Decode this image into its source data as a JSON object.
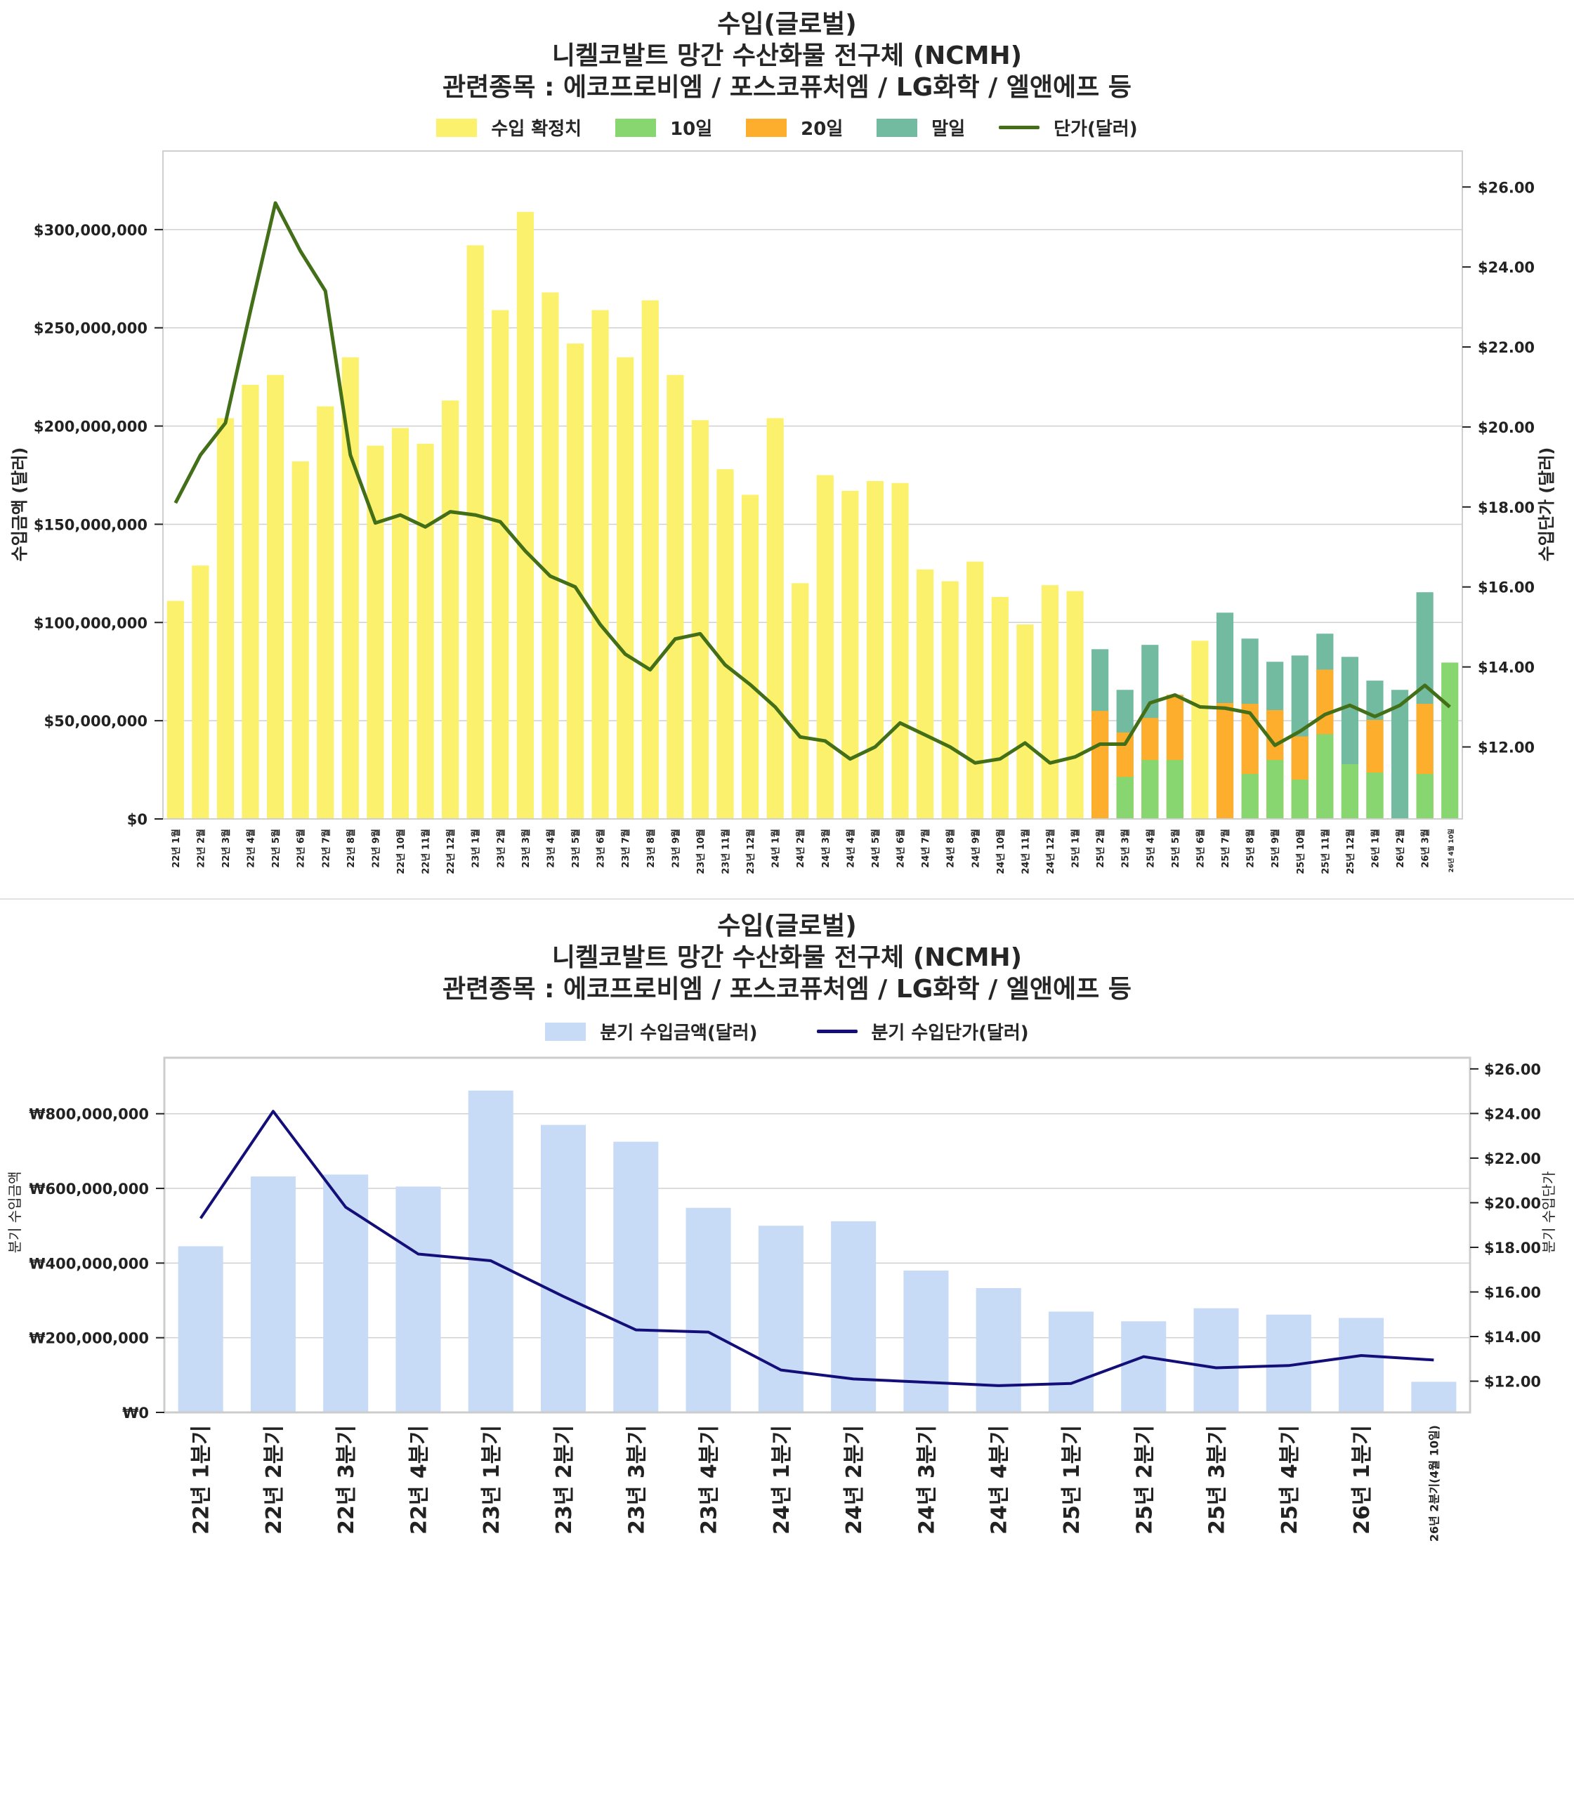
{
  "chart_data": [
    {
      "type": "bar",
      "title": [
        "수입(글로벌)",
        "니켈코발트 망간 수산화물 전구체 (NCMH)",
        "관련종목 : 에코프로비엠 / 포스코퓨처엠 / LG화학 / 엘앤에프 등"
      ],
      "legend": [
        {
          "label": "수입 확정치",
          "color": "#fcf16c",
          "kind": "bar"
        },
        {
          "label": "10일",
          "color": "#88d66f",
          "kind": "bar"
        },
        {
          "label": "20일",
          "color": "#fdae2c",
          "kind": "bar"
        },
        {
          "label": "말일",
          "color": "#72bba0",
          "kind": "bar"
        },
        {
          "label": "단가(달러)",
          "color": "#426f18",
          "kind": "line"
        }
      ],
      "legend_position": "top-center",
      "ylabel": "수입금액 (달러)",
      "y2label": "수입단가 (달러)",
      "ylim": [
        0,
        340000000
      ],
      "y2lim": [
        10.2,
        26.9
      ],
      "yticks": [
        0,
        50000000,
        100000000,
        150000000,
        200000000,
        250000000,
        300000000
      ],
      "ytick_labels": [
        "$0",
        "$50,000,000",
        "$100,000,000",
        "$150,000,000",
        "$200,000,000",
        "$250,000,000",
        "$300,000,000"
      ],
      "y2ticks": [
        12,
        14,
        16,
        18,
        20,
        22,
        24,
        26
      ],
      "y2tick_labels": [
        "$12.00",
        "$14.00",
        "$16.00",
        "$18.00",
        "$20.00",
        "$22.00",
        "$24.00",
        "$26.00"
      ],
      "grid": true,
      "categories": [
        "22년 1월",
        "22년 2월",
        "22년 3월",
        "22년 4월",
        "22년 5월",
        "22년 6월",
        "22년 7월",
        "22년 8월",
        "22년 9월",
        "22년 10월",
        "22년 11월",
        "22년 12월",
        "23년 1월",
        "23년 2월",
        "23년 3월",
        "23년 4월",
        "23년 5월",
        "23년 6월",
        "23년 7월",
        "23년 8월",
        "23년 9월",
        "23년 10월",
        "23년 11월",
        "23년 12월",
        "24년 1월",
        "24년 2월",
        "24년 3월",
        "24년 4월",
        "24년 5월",
        "24년 6월",
        "24년 7월",
        "24년 8월",
        "24년 9월",
        "24년 10월",
        "24년 11월",
        "24년 12월",
        "25년 1월",
        "25년 2월",
        "25년 3월",
        "25년 4월",
        "25년 5월",
        "25년 6월",
        "25년 7월",
        "25년 8월",
        "25년 9월",
        "25년 10월",
        "25년 11월",
        "25년 12월",
        "26년 1월",
        "26년 2월",
        "26년 3월",
        "26년 4월 10일"
      ],
      "series": [
        {
          "name": "수입 확정치",
          "values": [
            111000000,
            129000000,
            204000000,
            221000000,
            226000000,
            182000000,
            210000000,
            235000000,
            190000000,
            199000000,
            191000000,
            213000000,
            292000000,
            259000000,
            309000000,
            268000000,
            242000000,
            259000000,
            235000000,
            264000000,
            226000000,
            203000000,
            178000000,
            165000000,
            204000000,
            120000000,
            175000000,
            167000000,
            172000000,
            171000000,
            127000000,
            121000000,
            131000000,
            113000000,
            99000000,
            119000000,
            116000000,
            null,
            null,
            null,
            null,
            90700000,
            null,
            null,
            null,
            null,
            null,
            null,
            null,
            null,
            null,
            null
          ]
        },
        {
          "name": "말일",
          "values": [
            null,
            null,
            null,
            null,
            null,
            null,
            null,
            null,
            null,
            null,
            null,
            null,
            null,
            null,
            null,
            null,
            null,
            null,
            null,
            null,
            null,
            null,
            null,
            null,
            null,
            null,
            null,
            null,
            null,
            null,
            null,
            null,
            null,
            null,
            null,
            null,
            null,
            86400000,
            65700000,
            88600000,
            null,
            null,
            105000000,
            91800000,
            80000000,
            83200000,
            94300000,
            82500000,
            70400000,
            65700000,
            115400000,
            null
          ]
        },
        {
          "name": "20일",
          "values": [
            null,
            null,
            null,
            null,
            null,
            null,
            null,
            null,
            null,
            null,
            null,
            null,
            null,
            null,
            null,
            null,
            null,
            null,
            null,
            null,
            null,
            null,
            null,
            null,
            null,
            null,
            null,
            null,
            null,
            null,
            null,
            null,
            null,
            null,
            null,
            null,
            null,
            55000000,
            44000000,
            51400000,
            63200000,
            null,
            59000000,
            58600000,
            55400000,
            42000000,
            76000000,
            null,
            50400000,
            null,
            58600000,
            null
          ]
        },
        {
          "name": "10일",
          "values": [
            null,
            null,
            null,
            null,
            null,
            null,
            null,
            null,
            null,
            null,
            null,
            null,
            null,
            null,
            null,
            null,
            null,
            null,
            null,
            null,
            null,
            null,
            null,
            null,
            null,
            null,
            null,
            null,
            null,
            null,
            null,
            null,
            null,
            null,
            null,
            null,
            null,
            null,
            21400000,
            30000000,
            30000000,
            null,
            null,
            22900000,
            30000000,
            20000000,
            43200000,
            27900000,
            23600000,
            null,
            22900000,
            79600000
          ]
        },
        {
          "name": "단가(달러)",
          "axis": "y2",
          "values": [
            18.1,
            19.3,
            20.1,
            22.9,
            25.6,
            24.4,
            23.4,
            19.3,
            17.6,
            17.8,
            17.5,
            17.88,
            17.8,
            17.63,
            16.9,
            16.27,
            16.0,
            15.06,
            14.32,
            13.93,
            14.7,
            14.83,
            14.05,
            13.56,
            13.0,
            12.25,
            12.15,
            11.7,
            12.0,
            12.6,
            12.3,
            12.0,
            11.6,
            11.7,
            12.1,
            11.6,
            11.75,
            12.07,
            12.07,
            13.1,
            13.3,
            13.0,
            12.97,
            12.85,
            12.04,
            12.39,
            12.81,
            13.04,
            12.76,
            13.04,
            13.54,
            13.0
          ]
        }
      ]
    },
    {
      "type": "bar",
      "title": [
        "수입(글로벌)",
        "니켈코발트 망간 수산화물 전구체 (NCMH)",
        "관련종목 : 에코프로비엠 / 포스코퓨처엠 / LG화학 / 엘앤에프 등"
      ],
      "legend": [
        {
          "label": "분기 수입금액(달러)",
          "color": "#c7daf6",
          "kind": "bar"
        },
        {
          "label": "분기 수입단가(달러)",
          "color": "#140e78",
          "kind": "line"
        }
      ],
      "legend_position": "top-center",
      "ylabel": "분기 수입금액",
      "y2label": "분기 수입단가",
      "ylim": [
        0,
        950000000
      ],
      "y2lim": [
        10.6,
        26.5
      ],
      "yticks": [
        0,
        200000000,
        400000000,
        600000000,
        800000000
      ],
      "ytick_labels": [
        "₩0",
        "₩200,000,000",
        "₩400,000,000",
        "₩600,000,000",
        "₩800,000,000"
      ],
      "y2ticks": [
        12,
        14,
        16,
        18,
        20,
        22,
        24,
        26
      ],
      "y2tick_labels": [
        "$12.00",
        "$14.00",
        "$16.00",
        "$18.00",
        "$20.00",
        "$22.00",
        "$24.00",
        "$26.00"
      ],
      "grid": true,
      "categories": [
        "22년 1분기",
        "22년 2분기",
        "22년 3분기",
        "22년 4분기",
        "23년 1분기",
        "23년 2분기",
        "23년 3분기",
        "23년 4분기",
        "24년 1분기",
        "24년 2분기",
        "24년 3분기",
        "24년 4분기",
        "25년 1분기",
        "25년 2분기",
        "25년 3분기",
        "25년 4분기",
        "26년 1분기",
        "26년 2분기(4월 10일)"
      ],
      "series": [
        {
          "name": "분기 수입금액(달러)",
          "values": [
            445000000,
            632000000,
            637000000,
            605000000,
            862000000,
            770000000,
            725000000,
            548000000,
            500000000,
            512000000,
            380000000,
            333000000,
            270000000,
            244000000,
            279000000,
            262000000,
            253000000,
            82000000
          ]
        },
        {
          "name": "분기 수입단가(달러)",
          "axis": "y2",
          "values": [
            19.3,
            24.1,
            19.8,
            17.7,
            17.4,
            15.8,
            14.3,
            14.2,
            12.5,
            12.1,
            11.95,
            11.8,
            11.9,
            13.1,
            12.6,
            12.7,
            13.15,
            12.95
          ]
        }
      ]
    }
  ]
}
